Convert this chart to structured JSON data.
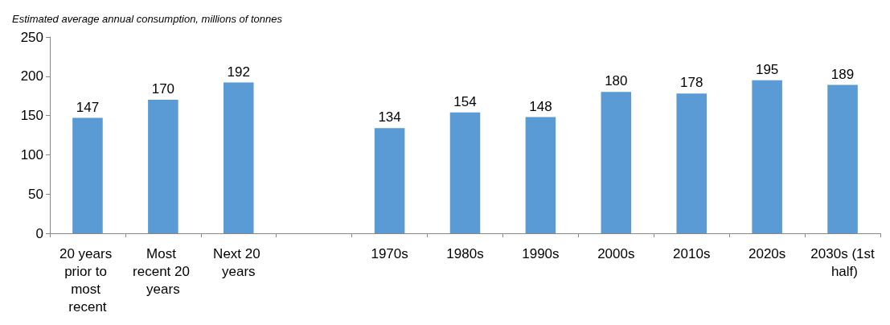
{
  "chart_data": {
    "type": "bar",
    "title": "Estimated average annual consumption, millions of tonnes",
    "categories": [
      "20 years prior to most recent",
      "Most recent 20 years",
      "Next 20 years",
      null,
      "1970s",
      "1980s",
      "1990s",
      "2000s",
      "2010s",
      "2020s",
      "2030s (1st half)"
    ],
    "values": [
      147,
      170,
      192,
      null,
      134,
      154,
      148,
      180,
      178,
      195,
      189
    ],
    "color": "#5b9bd5",
    "ylim": [
      0,
      250
    ],
    "yticks": [
      0,
      50,
      100,
      150,
      200,
      250
    ],
    "grid": false,
    "data_labels": true
  }
}
